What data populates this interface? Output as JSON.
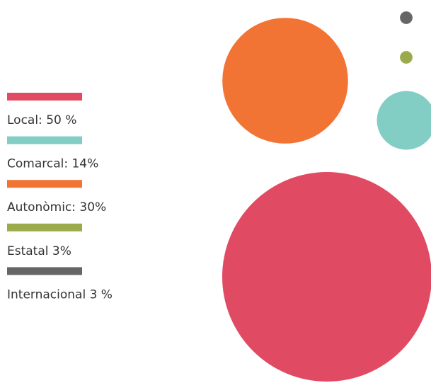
{
  "chart_data": {
    "type": "bubble",
    "categories": [
      "Local: 50 %",
      "Comarcal: 14%",
      "Autonòmic: 30%",
      "Estatal 3%",
      "Internacional 3 %"
    ],
    "values": [
      50,
      14,
      30,
      3,
      3
    ],
    "colors": [
      "#e14a63",
      "#82cdc4",
      "#f27435",
      "#9bab4c",
      "#666666"
    ]
  }
}
